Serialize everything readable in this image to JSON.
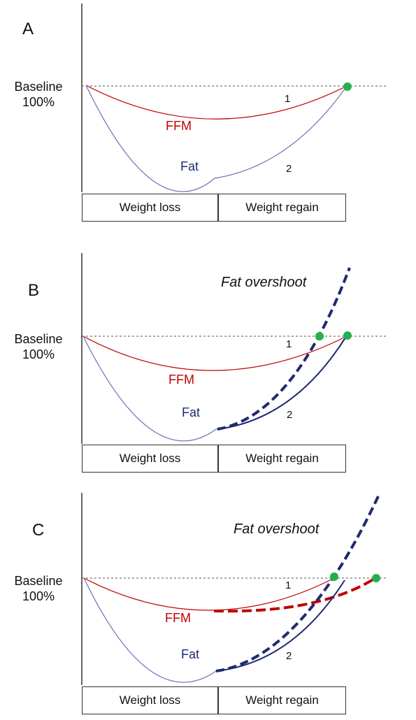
{
  "panels": [
    {
      "letter": "A",
      "baseline": "Baseline",
      "baseline_pct": "100%",
      "ffm_label": "FFM",
      "fat_label": "Fat",
      "curve1_label": "1",
      "curve2_label": "2",
      "phase_loss": "Weight loss",
      "phase_regain": "Weight regain"
    },
    {
      "letter": "B",
      "baseline": "Baseline",
      "baseline_pct": "100%",
      "ffm_label": "FFM",
      "fat_label": "Fat",
      "curve1_label": "1",
      "curve2_label": "2",
      "overshoot": "Fat overshoot",
      "phase_loss": "Weight loss",
      "phase_regain": "Weight regain"
    },
    {
      "letter": "C",
      "baseline": "Baseline",
      "baseline_pct": "100%",
      "ffm_label": "FFM",
      "fat_label": "Fat",
      "curve1_label": "1",
      "curve2_label": "2",
      "overshoot": "Fat overshoot",
      "phase_loss": "Weight loss",
      "phase_regain": "Weight regain"
    }
  ],
  "colors": {
    "ffm": "#c00000",
    "fat": "#1f2a6e",
    "fat_thin": "#6b74b8",
    "marker": "#22b14c",
    "dashed_fat": "#1f2a6e",
    "dashed_ffm": "#c00000"
  }
}
